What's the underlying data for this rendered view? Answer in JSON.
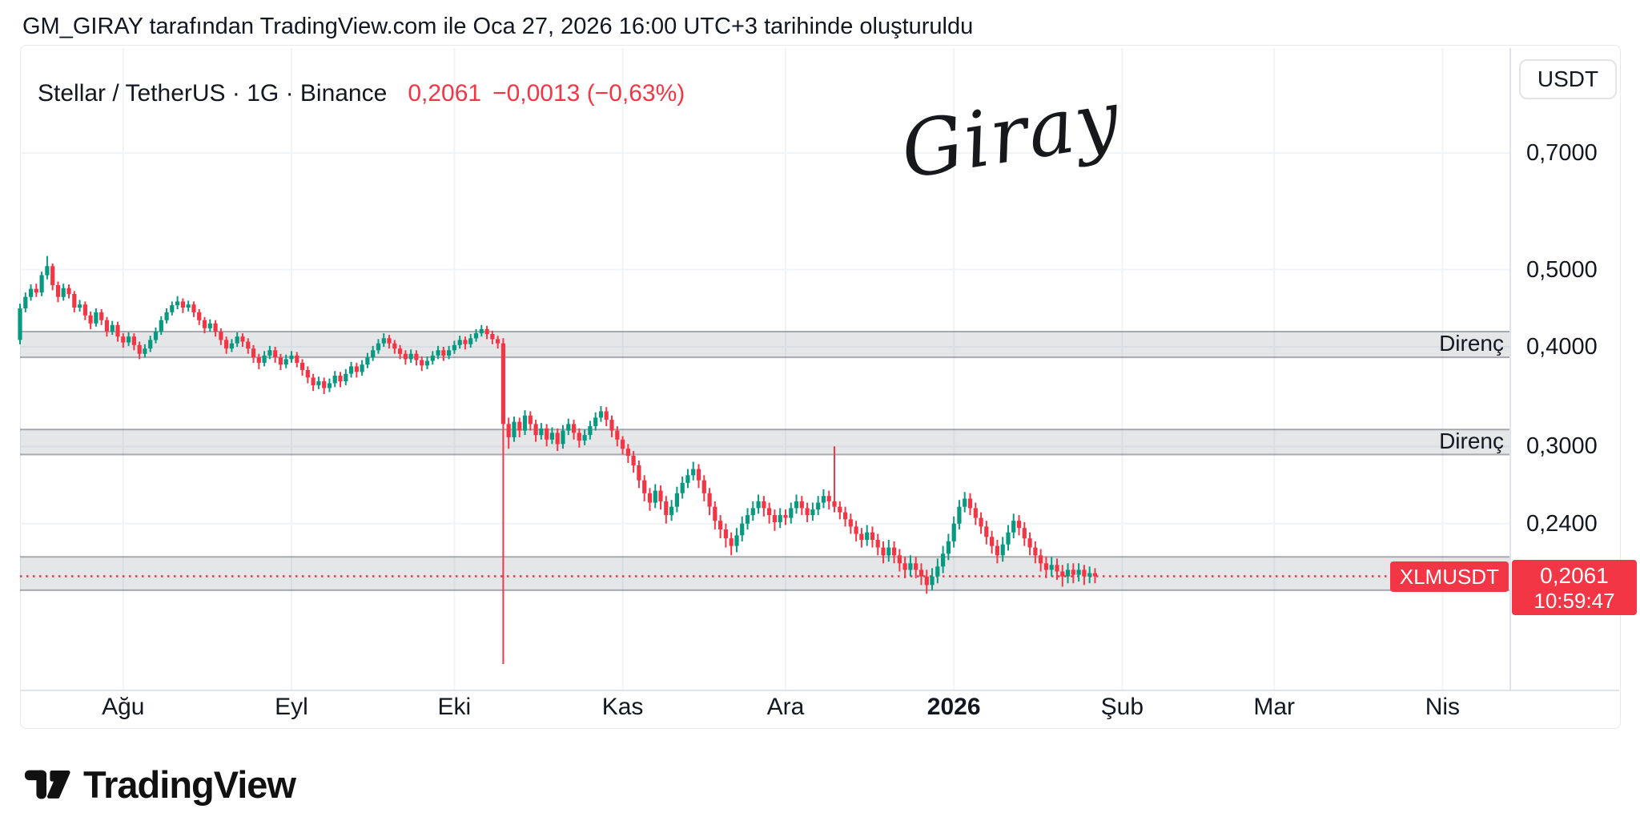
{
  "attribution": "GM_GIRAY tarafından TradingView.com ile Oca 27, 2026 16:00 UTC+3 tarihinde oluşturuldu",
  "header": {
    "symbol_line": "Stellar / TetherUS · 1G · Binance",
    "price": "0,2061",
    "change": "−0,0013 (−0,63%)"
  },
  "price_axis": {
    "currency": "USDT"
  },
  "watermark": {
    "text": "Giray"
  },
  "footer": {
    "logo_text": "TradingView"
  },
  "chart_data": {
    "type": "candlestick",
    "title": "Stellar / TetherUS · 1G · Binance",
    "symbol": "XLMUSDT",
    "timeframe": "1G",
    "scale": "log",
    "grid": true,
    "current_price": 0.2061,
    "colors": {
      "up": "#089981",
      "down": "#F23645",
      "accent": "#F23645",
      "band_fill": "rgba(135,139,150,0.22)",
      "band_edge": "rgba(105,110,120,0.55)"
    },
    "y_ticks": [
      {
        "price": 0.7,
        "label": "0,7000"
      },
      {
        "price": 0.5,
        "label": "0,5000"
      },
      {
        "price": 0.4,
        "label": "0,4000"
      },
      {
        "price": 0.3,
        "label": "0,3000"
      },
      {
        "price": 0.24,
        "label": "0,2400"
      }
    ],
    "x_ticks": [
      {
        "day": 19,
        "label": "Ağu"
      },
      {
        "day": 50,
        "label": "Eyl"
      },
      {
        "day": 80,
        "label": "Eki"
      },
      {
        "day": 111,
        "label": "Kas"
      },
      {
        "day": 141,
        "label": "Ara"
      },
      {
        "day": 172,
        "label": "2026",
        "bold": true
      },
      {
        "day": 203,
        "label": "Şub"
      },
      {
        "day": 231,
        "label": "Mar"
      },
      {
        "day": 262,
        "label": "Nis"
      }
    ],
    "bands": [
      {
        "from": 0.388,
        "to": 0.418,
        "label": "Direnç"
      },
      {
        "from": 0.293,
        "to": 0.315,
        "label": "Direnç"
      },
      {
        "from": 0.198,
        "to": 0.218,
        "label": ""
      }
    ],
    "price_line": {
      "price": 0.2061,
      "tag": "XLMUSDT",
      "badge_price": "0,2061",
      "badge_time": "10:59:47",
      "color": "#F23645"
    },
    "candles": [
      [
        0.408,
        0.453,
        0.403,
        0.447
      ],
      [
        0.447,
        0.468,
        0.442,
        0.462
      ],
      [
        0.462,
        0.479,
        0.457,
        0.473
      ],
      [
        0.473,
        0.48,
        0.462,
        0.468
      ],
      [
        0.468,
        0.497,
        0.463,
        0.492
      ],
      [
        0.492,
        0.52,
        0.486,
        0.505
      ],
      [
        0.505,
        0.509,
        0.471,
        0.478
      ],
      [
        0.478,
        0.483,
        0.455,
        0.462
      ],
      [
        0.462,
        0.48,
        0.457,
        0.474
      ],
      [
        0.474,
        0.479,
        0.46,
        0.466
      ],
      [
        0.466,
        0.47,
        0.442,
        0.448
      ],
      [
        0.448,
        0.458,
        0.443,
        0.452
      ],
      [
        0.452,
        0.456,
        0.432,
        0.438
      ],
      [
        0.438,
        0.443,
        0.421,
        0.428
      ],
      [
        0.428,
        0.447,
        0.424,
        0.442
      ],
      [
        0.442,
        0.446,
        0.426,
        0.432
      ],
      [
        0.432,
        0.436,
        0.412,
        0.418
      ],
      [
        0.418,
        0.431,
        0.414,
        0.426
      ],
      [
        0.426,
        0.43,
        0.406,
        0.412
      ],
      [
        0.412,
        0.416,
        0.399,
        0.405
      ],
      [
        0.405,
        0.417,
        0.401,
        0.412
      ],
      [
        0.412,
        0.416,
        0.396,
        0.402
      ],
      [
        0.402,
        0.406,
        0.386,
        0.392
      ],
      [
        0.392,
        0.403,
        0.388,
        0.398
      ],
      [
        0.398,
        0.413,
        0.394,
        0.408
      ],
      [
        0.408,
        0.423,
        0.404,
        0.418
      ],
      [
        0.418,
        0.437,
        0.414,
        0.432
      ],
      [
        0.432,
        0.447,
        0.428,
        0.442
      ],
      [
        0.442,
        0.456,
        0.438,
        0.451
      ],
      [
        0.451,
        0.463,
        0.446,
        0.456
      ],
      [
        0.456,
        0.46,
        0.441,
        0.448
      ],
      [
        0.448,
        0.457,
        0.443,
        0.452
      ],
      [
        0.452,
        0.456,
        0.436,
        0.442
      ],
      [
        0.442,
        0.446,
        0.426,
        0.432
      ],
      [
        0.432,
        0.436,
        0.416,
        0.422
      ],
      [
        0.422,
        0.433,
        0.418,
        0.428
      ],
      [
        0.428,
        0.432,
        0.412,
        0.418
      ],
      [
        0.418,
        0.422,
        0.402,
        0.408
      ],
      [
        0.408,
        0.412,
        0.392,
        0.398
      ],
      [
        0.398,
        0.409,
        0.394,
        0.404
      ],
      [
        0.404,
        0.417,
        0.4,
        0.412
      ],
      [
        0.412,
        0.416,
        0.4,
        0.406
      ],
      [
        0.406,
        0.41,
        0.392,
        0.398
      ],
      [
        0.398,
        0.402,
        0.382,
        0.388
      ],
      [
        0.388,
        0.392,
        0.375,
        0.382
      ],
      [
        0.382,
        0.395,
        0.378,
        0.39
      ],
      [
        0.39,
        0.401,
        0.386,
        0.396
      ],
      [
        0.396,
        0.4,
        0.382,
        0.388
      ],
      [
        0.388,
        0.392,
        0.374,
        0.38
      ],
      [
        0.38,
        0.391,
        0.376,
        0.386
      ],
      [
        0.386,
        0.395,
        0.382,
        0.39
      ],
      [
        0.39,
        0.394,
        0.377,
        0.382
      ],
      [
        0.382,
        0.386,
        0.368,
        0.374
      ],
      [
        0.374,
        0.378,
        0.36,
        0.366
      ],
      [
        0.366,
        0.37,
        0.352,
        0.358
      ],
      [
        0.358,
        0.367,
        0.354,
        0.362
      ],
      [
        0.362,
        0.366,
        0.349,
        0.355
      ],
      [
        0.355,
        0.365,
        0.351,
        0.36
      ],
      [
        0.36,
        0.373,
        0.356,
        0.368
      ],
      [
        0.368,
        0.372,
        0.356,
        0.362
      ],
      [
        0.362,
        0.375,
        0.358,
        0.37
      ],
      [
        0.37,
        0.383,
        0.366,
        0.378
      ],
      [
        0.378,
        0.382,
        0.366,
        0.372
      ],
      [
        0.372,
        0.385,
        0.368,
        0.38
      ],
      [
        0.38,
        0.393,
        0.376,
        0.388
      ],
      [
        0.388,
        0.401,
        0.384,
        0.396
      ],
      [
        0.396,
        0.409,
        0.392,
        0.404
      ],
      [
        0.404,
        0.416,
        0.4,
        0.41
      ],
      [
        0.41,
        0.414,
        0.398,
        0.404
      ],
      [
        0.404,
        0.408,
        0.392,
        0.398
      ],
      [
        0.398,
        0.402,
        0.386,
        0.392
      ],
      [
        0.392,
        0.396,
        0.38,
        0.386
      ],
      [
        0.386,
        0.397,
        0.382,
        0.392
      ],
      [
        0.392,
        0.396,
        0.379,
        0.385
      ],
      [
        0.385,
        0.389,
        0.373,
        0.379
      ],
      [
        0.379,
        0.389,
        0.375,
        0.384
      ],
      [
        0.384,
        0.395,
        0.38,
        0.39
      ],
      [
        0.39,
        0.401,
        0.386,
        0.396
      ],
      [
        0.396,
        0.4,
        0.384,
        0.39
      ],
      [
        0.39,
        0.401,
        0.386,
        0.396
      ],
      [
        0.396,
        0.407,
        0.392,
        0.402
      ],
      [
        0.402,
        0.413,
        0.398,
        0.408
      ],
      [
        0.408,
        0.412,
        0.397,
        0.403
      ],
      [
        0.403,
        0.415,
        0.399,
        0.41
      ],
      [
        0.41,
        0.421,
        0.406,
        0.416
      ],
      [
        0.416,
        0.426,
        0.412,
        0.421
      ],
      [
        0.421,
        0.425,
        0.409,
        0.415
      ],
      [
        0.415,
        0.419,
        0.403,
        0.409
      ],
      [
        0.409,
        0.413,
        0.398,
        0.404
      ],
      [
        0.404,
        0.41,
        0.16,
        0.32
      ],
      [
        0.32,
        0.326,
        0.298,
        0.308
      ],
      [
        0.308,
        0.327,
        0.304,
        0.322
      ],
      [
        0.322,
        0.326,
        0.308,
        0.314
      ],
      [
        0.314,
        0.333,
        0.31,
        0.328
      ],
      [
        0.328,
        0.332,
        0.314,
        0.32
      ],
      [
        0.32,
        0.324,
        0.304,
        0.31
      ],
      [
        0.31,
        0.321,
        0.306,
        0.316
      ],
      [
        0.316,
        0.32,
        0.3,
        0.306
      ],
      [
        0.306,
        0.317,
        0.302,
        0.312
      ],
      [
        0.312,
        0.316,
        0.296,
        0.302
      ],
      [
        0.302,
        0.319,
        0.298,
        0.314
      ],
      [
        0.314,
        0.325,
        0.31,
        0.32
      ],
      [
        0.32,
        0.324,
        0.306,
        0.312
      ],
      [
        0.312,
        0.316,
        0.299,
        0.305
      ],
      [
        0.305,
        0.315,
        0.301,
        0.31
      ],
      [
        0.31,
        0.323,
        0.306,
        0.318
      ],
      [
        0.318,
        0.331,
        0.314,
        0.326
      ],
      [
        0.326,
        0.337,
        0.322,
        0.332
      ],
      [
        0.332,
        0.336,
        0.318,
        0.324
      ],
      [
        0.324,
        0.328,
        0.308,
        0.314
      ],
      [
        0.314,
        0.318,
        0.3,
        0.306
      ],
      [
        0.306,
        0.309,
        0.293,
        0.298
      ],
      [
        0.298,
        0.302,
        0.286,
        0.292
      ],
      [
        0.292,
        0.296,
        0.278,
        0.284
      ],
      [
        0.284,
        0.288,
        0.266,
        0.272
      ],
      [
        0.272,
        0.276,
        0.256,
        0.262
      ],
      [
        0.262,
        0.266,
        0.249,
        0.255
      ],
      [
        0.255,
        0.269,
        0.251,
        0.264
      ],
      [
        0.264,
        0.268,
        0.25,
        0.256
      ],
      [
        0.256,
        0.26,
        0.24,
        0.246
      ],
      [
        0.246,
        0.257,
        0.242,
        0.252
      ],
      [
        0.252,
        0.267,
        0.248,
        0.262
      ],
      [
        0.262,
        0.275,
        0.258,
        0.27
      ],
      [
        0.27,
        0.281,
        0.266,
        0.276
      ],
      [
        0.276,
        0.287,
        0.272,
        0.281
      ],
      [
        0.281,
        0.285,
        0.266,
        0.272
      ],
      [
        0.272,
        0.276,
        0.256,
        0.262
      ],
      [
        0.262,
        0.266,
        0.246,
        0.252
      ],
      [
        0.252,
        0.256,
        0.236,
        0.242
      ],
      [
        0.242,
        0.246,
        0.23,
        0.236
      ],
      [
        0.236,
        0.24,
        0.224,
        0.23
      ],
      [
        0.23,
        0.234,
        0.219,
        0.225
      ],
      [
        0.225,
        0.237,
        0.221,
        0.232
      ],
      [
        0.232,
        0.245,
        0.228,
        0.24
      ],
      [
        0.24,
        0.251,
        0.236,
        0.246
      ],
      [
        0.246,
        0.256,
        0.242,
        0.251
      ],
      [
        0.251,
        0.261,
        0.247,
        0.256
      ],
      [
        0.256,
        0.26,
        0.245,
        0.251
      ],
      [
        0.251,
        0.255,
        0.24,
        0.246
      ],
      [
        0.246,
        0.25,
        0.235,
        0.241
      ],
      [
        0.241,
        0.251,
        0.237,
        0.246
      ],
      [
        0.246,
        0.25,
        0.239,
        0.244
      ],
      [
        0.244,
        0.255,
        0.24,
        0.251
      ],
      [
        0.251,
        0.261,
        0.247,
        0.256
      ],
      [
        0.256,
        0.26,
        0.246,
        0.251
      ],
      [
        0.251,
        0.255,
        0.241,
        0.246
      ],
      [
        0.246,
        0.255,
        0.242,
        0.25
      ],
      [
        0.25,
        0.26,
        0.246,
        0.255
      ],
      [
        0.255,
        0.265,
        0.251,
        0.26
      ],
      [
        0.26,
        0.264,
        0.25,
        0.256
      ],
      [
        0.256,
        0.3,
        0.248,
        0.252
      ],
      [
        0.252,
        0.256,
        0.243,
        0.248
      ],
      [
        0.248,
        0.252,
        0.238,
        0.243
      ],
      [
        0.243,
        0.247,
        0.233,
        0.238
      ],
      [
        0.238,
        0.242,
        0.228,
        0.233
      ],
      [
        0.233,
        0.237,
        0.224,
        0.229
      ],
      [
        0.229,
        0.239,
        0.225,
        0.234
      ],
      [
        0.234,
        0.238,
        0.224,
        0.229
      ],
      [
        0.229,
        0.233,
        0.219,
        0.224
      ],
      [
        0.224,
        0.228,
        0.214,
        0.219
      ],
      [
        0.219,
        0.229,
        0.215,
        0.224
      ],
      [
        0.224,
        0.228,
        0.214,
        0.219
      ],
      [
        0.219,
        0.223,
        0.209,
        0.214
      ],
      [
        0.214,
        0.218,
        0.205,
        0.21
      ],
      [
        0.21,
        0.219,
        0.206,
        0.214
      ],
      [
        0.214,
        0.218,
        0.205,
        0.21
      ],
      [
        0.21,
        0.214,
        0.201,
        0.206
      ],
      [
        0.206,
        0.21,
        0.196,
        0.201
      ],
      [
        0.201,
        0.211,
        0.198,
        0.206
      ],
      [
        0.206,
        0.217,
        0.202,
        0.212
      ],
      [
        0.212,
        0.225,
        0.208,
        0.22
      ],
      [
        0.22,
        0.233,
        0.216,
        0.228
      ],
      [
        0.228,
        0.245,
        0.224,
        0.24
      ],
      [
        0.24,
        0.257,
        0.236,
        0.252
      ],
      [
        0.252,
        0.263,
        0.248,
        0.258
      ],
      [
        0.258,
        0.262,
        0.246,
        0.251
      ],
      [
        0.251,
        0.255,
        0.239,
        0.244
      ],
      [
        0.244,
        0.248,
        0.233,
        0.238
      ],
      [
        0.238,
        0.242,
        0.226,
        0.231
      ],
      [
        0.231,
        0.235,
        0.22,
        0.225
      ],
      [
        0.225,
        0.229,
        0.214,
        0.219
      ],
      [
        0.219,
        0.231,
        0.215,
        0.226
      ],
      [
        0.226,
        0.239,
        0.222,
        0.234
      ],
      [
        0.234,
        0.247,
        0.23,
        0.242
      ],
      [
        0.242,
        0.246,
        0.232,
        0.237
      ],
      [
        0.237,
        0.241,
        0.225,
        0.23
      ],
      [
        0.23,
        0.234,
        0.219,
        0.224
      ],
      [
        0.224,
        0.228,
        0.214,
        0.219
      ],
      [
        0.219,
        0.223,
        0.209,
        0.214
      ],
      [
        0.214,
        0.218,
        0.205,
        0.21
      ],
      [
        0.21,
        0.218,
        0.206,
        0.213
      ],
      [
        0.213,
        0.217,
        0.204,
        0.209
      ],
      [
        0.209,
        0.213,
        0.2,
        0.206
      ],
      [
        0.206,
        0.214,
        0.202,
        0.21
      ],
      [
        0.21,
        0.214,
        0.202,
        0.207
      ],
      [
        0.207,
        0.214,
        0.203,
        0.21
      ],
      [
        0.21,
        0.213,
        0.201,
        0.206
      ],
      [
        0.206,
        0.212,
        0.202,
        0.208
      ],
      [
        0.208,
        0.211,
        0.202,
        0.2061
      ]
    ]
  }
}
